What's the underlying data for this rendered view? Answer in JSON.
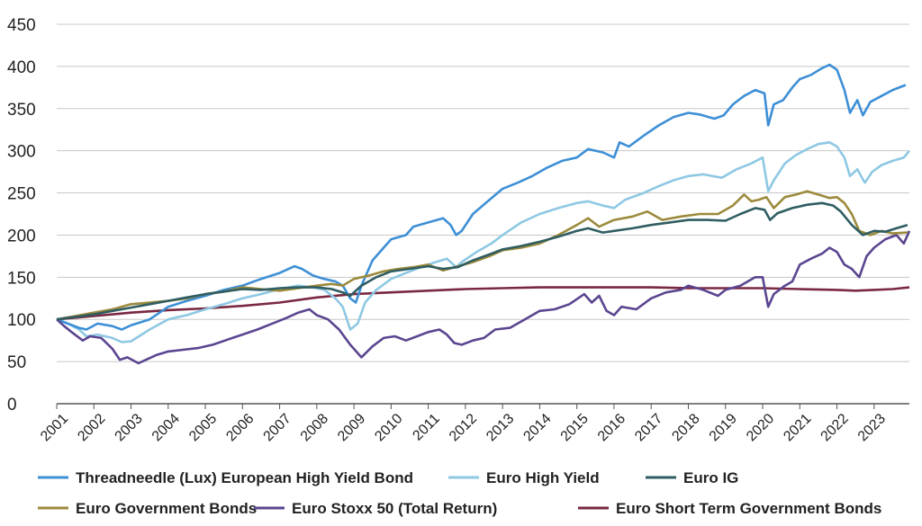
{
  "chart_data": {
    "type": "line",
    "title": "",
    "xlabel": "",
    "ylabel": "",
    "ylim": [
      0,
      450
    ],
    "yticks": [
      "0",
      "50",
      "100",
      "150",
      "200",
      "250",
      "300",
      "350",
      "400",
      "450"
    ],
    "xticks": [
      "2001",
      "2002",
      "2003",
      "2004",
      "2005",
      "2006",
      "2007",
      "2008",
      "2009",
      "2010",
      "2011",
      "2012",
      "2013",
      "2014",
      "2015",
      "2016",
      "2017",
      "2018",
      "2019",
      "2020",
      "2021",
      "2022",
      "2023"
    ],
    "xlim": [
      2001,
      2023.95
    ],
    "grid": "horizontal",
    "legend_position": "bottom",
    "series": [
      {
        "name": "Threadneedle (Lux) European High Yield Bond",
        "color": "#3d8fd6",
        "x": [
          2001,
          2001.3,
          2001.6,
          2001.8,
          2002.1,
          2002.5,
          2002.75,
          2003.0,
          2003.5,
          2004.0,
          2004.5,
          2005.0,
          2005.5,
          2006.0,
          2006.5,
          2007.0,
          2007.4,
          2007.6,
          2007.9,
          2008.2,
          2008.5,
          2008.7,
          2008.9,
          2009.05,
          2009.2,
          2009.5,
          2009.8,
          2010.0,
          2010.4,
          2010.6,
          2011.0,
          2011.4,
          2011.6,
          2011.75,
          2011.9,
          2012.2,
          2012.6,
          2013.0,
          2013.4,
          2013.8,
          2014.2,
          2014.6,
          2015.0,
          2015.3,
          2015.7,
          2016.0,
          2016.15,
          2016.4,
          2016.8,
          2017.2,
          2017.6,
          2018.0,
          2018.3,
          2018.7,
          2018.95,
          2019.2,
          2019.5,
          2019.8,
          2020.05,
          2020.15,
          2020.3,
          2020.55,
          2020.8,
          2021.0,
          2021.3,
          2021.6,
          2021.8,
          2022.0,
          2022.2,
          2022.35,
          2022.55,
          2022.7,
          2022.9,
          2023.2,
          2023.5,
          2023.85
        ],
        "y": [
          100,
          95,
          90,
          88,
          95,
          92,
          88,
          93,
          100,
          115,
          122,
          128,
          135,
          140,
          148,
          155,
          163,
          160,
          152,
          148,
          145,
          140,
          125,
          120,
          140,
          170,
          185,
          195,
          200,
          210,
          215,
          220,
          212,
          200,
          205,
          225,
          240,
          255,
          262,
          270,
          280,
          288,
          292,
          302,
          298,
          292,
          310,
          305,
          318,
          330,
          340,
          345,
          343,
          338,
          342,
          355,
          365,
          372,
          368,
          330,
          355,
          360,
          375,
          385,
          390,
          398,
          402,
          396,
          372,
          345,
          360,
          342,
          358,
          365,
          372,
          378
        ]
      },
      {
        "name": "Euro High Yield",
        "color": "#8ec8e3",
        "x": [
          2001,
          2001.3,
          2001.6,
          2001.8,
          2002.1,
          2002.5,
          2002.75,
          2003.0,
          2003.5,
          2004.0,
          2004.5,
          2005.0,
          2005.5,
          2006.0,
          2006.5,
          2007.0,
          2007.5,
          2007.9,
          2008.2,
          2008.5,
          2008.7,
          2008.9,
          2009.1,
          2009.3,
          2009.6,
          2010.0,
          2010.4,
          2010.8,
          2011.2,
          2011.5,
          2011.75,
          2011.9,
          2012.3,
          2012.7,
          2013.0,
          2013.5,
          2014.0,
          2014.5,
          2015.0,
          2015.3,
          2015.7,
          2016.0,
          2016.3,
          2016.8,
          2017.2,
          2017.6,
          2018.0,
          2018.4,
          2018.9,
          2019.3,
          2019.7,
          2020.0,
          2020.15,
          2020.3,
          2020.6,
          2020.9,
          2021.2,
          2021.5,
          2021.8,
          2022.0,
          2022.2,
          2022.35,
          2022.55,
          2022.75,
          2022.95,
          2023.2,
          2023.5,
          2023.8,
          2023.95
        ],
        "y": [
          100,
          95,
          88,
          80,
          82,
          78,
          73,
          74,
          88,
          100,
          105,
          112,
          118,
          125,
          130,
          136,
          140,
          138,
          135,
          125,
          115,
          88,
          95,
          120,
          135,
          148,
          155,
          162,
          168,
          172,
          162,
          168,
          180,
          190,
          200,
          215,
          225,
          232,
          238,
          240,
          235,
          232,
          242,
          250,
          258,
          265,
          270,
          272,
          268,
          278,
          285,
          292,
          252,
          265,
          285,
          295,
          302,
          308,
          310,
          305,
          292,
          270,
          278,
          262,
          275,
          283,
          288,
          292,
          300
        ]
      },
      {
        "name": "Euro IG",
        "color": "#2f5d62",
        "x": [
          2001,
          2001.5,
          2002,
          2002.5,
          2003,
          2003.5,
          2004,
          2004.5,
          2005,
          2005.5,
          2006,
          2006.5,
          2007,
          2007.5,
          2008,
          2008.4,
          2008.7,
          2008.9,
          2009.2,
          2009.6,
          2010,
          2010.5,
          2011,
          2011.4,
          2011.8,
          2012.2,
          2012.7,
          2013,
          2013.5,
          2014,
          2014.5,
          2015,
          2015.3,
          2015.7,
          2016,
          2016.5,
          2017,
          2017.5,
          2018,
          2018.5,
          2019,
          2019.4,
          2019.8,
          2020.05,
          2020.2,
          2020.4,
          2020.8,
          2021.2,
          2021.6,
          2021.9,
          2022.1,
          2022.4,
          2022.7,
          2023.0,
          2023.3,
          2023.6,
          2023.9
        ],
        "y": [
          100,
          103,
          106,
          110,
          114,
          118,
          122,
          126,
          130,
          133,
          136,
          135,
          137,
          138,
          138,
          136,
          132,
          128,
          140,
          150,
          157,
          160,
          163,
          160,
          162,
          170,
          178,
          183,
          187,
          192,
          198,
          205,
          208,
          203,
          205,
          208,
          212,
          215,
          218,
          218,
          217,
          225,
          232,
          230,
          218,
          226,
          232,
          236,
          238,
          235,
          228,
          212,
          200,
          205,
          204,
          208,
          212
        ]
      },
      {
        "name": "Euro Government Bonds",
        "color": "#9c8a3c",
        "x": [
          2001,
          2001.5,
          2002,
          2002.5,
          2003,
          2003.5,
          2004,
          2004.5,
          2005,
          2005.5,
          2006,
          2006.5,
          2007,
          2007.5,
          2008,
          2008.4,
          2008.7,
          2009,
          2009.4,
          2009.8,
          2010.2,
          2010.6,
          2011,
          2011.4,
          2011.8,
          2012.2,
          2012.7,
          2013,
          2013.5,
          2014,
          2014.5,
          2015,
          2015.3,
          2015.6,
          2016,
          2016.5,
          2016.9,
          2017.3,
          2017.8,
          2018.3,
          2018.8,
          2019.2,
          2019.5,
          2019.7,
          2019.9,
          2020.1,
          2020.3,
          2020.6,
          2020.9,
          2021.2,
          2021.5,
          2021.8,
          2022.0,
          2022.2,
          2022.4,
          2022.6,
          2022.9,
          2023.2,
          2023.5,
          2023.9
        ],
        "y": [
          100,
          104,
          108,
          112,
          118,
          120,
          122,
          125,
          130,
          133,
          138,
          136,
          134,
          137,
          140,
          142,
          140,
          148,
          152,
          157,
          160,
          162,
          165,
          158,
          163,
          168,
          176,
          182,
          185,
          190,
          200,
          212,
          220,
          210,
          218,
          222,
          228,
          218,
          222,
          225,
          225,
          235,
          248,
          240,
          242,
          245,
          232,
          245,
          248,
          252,
          248,
          244,
          245,
          238,
          225,
          205,
          200,
          205,
          202,
          203
        ]
      },
      {
        "name": "Euro Stoxx 50 (Total Return)",
        "color": "#5b4590",
        "x": [
          2001,
          2001.2,
          2001.4,
          2001.7,
          2001.9,
          2002.2,
          2002.5,
          2002.7,
          2002.9,
          2003.2,
          2003.4,
          2003.7,
          2004.0,
          2004.4,
          2004.8,
          2005.2,
          2005.6,
          2006.0,
          2006.4,
          2006.8,
          2007.2,
          2007.5,
          2007.8,
          2008.0,
          2008.3,
          2008.6,
          2008.9,
          2009.2,
          2009.5,
          2009.8,
          2010.1,
          2010.4,
          2010.7,
          2011.0,
          2011.3,
          2011.5,
          2011.7,
          2011.9,
          2012.2,
          2012.5,
          2012.8,
          2013.2,
          2013.6,
          2014.0,
          2014.4,
          2014.8,
          2015.2,
          2015.4,
          2015.6,
          2015.8,
          2016.0,
          2016.2,
          2016.6,
          2017.0,
          2017.4,
          2017.8,
          2018.0,
          2018.4,
          2018.8,
          2019.0,
          2019.4,
          2019.8,
          2020.0,
          2020.15,
          2020.3,
          2020.6,
          2020.8,
          2021.0,
          2021.3,
          2021.6,
          2021.8,
          2022.0,
          2022.2,
          2022.4,
          2022.6,
          2022.8,
          2023.0,
          2023.3,
          2023.6,
          2023.8,
          2023.95
        ],
        "y": [
          100,
          92,
          85,
          75,
          80,
          78,
          65,
          52,
          55,
          48,
          52,
          58,
          62,
          64,
          66,
          70,
          76,
          82,
          88,
          95,
          102,
          108,
          112,
          105,
          100,
          88,
          70,
          55,
          68,
          78,
          80,
          75,
          80,
          85,
          88,
          82,
          72,
          70,
          75,
          78,
          88,
          90,
          100,
          110,
          112,
          118,
          130,
          120,
          128,
          110,
          105,
          115,
          112,
          125,
          132,
          135,
          140,
          135,
          128,
          135,
          140,
          150,
          150,
          115,
          130,
          140,
          145,
          165,
          172,
          178,
          185,
          180,
          165,
          160,
          150,
          175,
          185,
          195,
          200,
          190,
          205
        ]
      },
      {
        "name": "Euro Short Term Government Bonds",
        "color": "#7a2840",
        "x": [
          2001,
          2002,
          2003,
          2004,
          2005,
          2006,
          2007,
          2008,
          2009,
          2010,
          2011,
          2012,
          2013,
          2014,
          2015,
          2016,
          2017,
          2018,
          2019,
          2020,
          2021,
          2022,
          2022.5,
          2023,
          2023.5,
          2023.95
        ],
        "y": [
          100,
          104,
          108,
          111,
          113,
          116,
          120,
          126,
          130,
          132,
          134,
          136,
          137,
          138,
          138,
          138,
          138,
          137,
          137,
          137,
          136,
          135,
          134,
          135,
          136,
          138
        ]
      }
    ]
  }
}
